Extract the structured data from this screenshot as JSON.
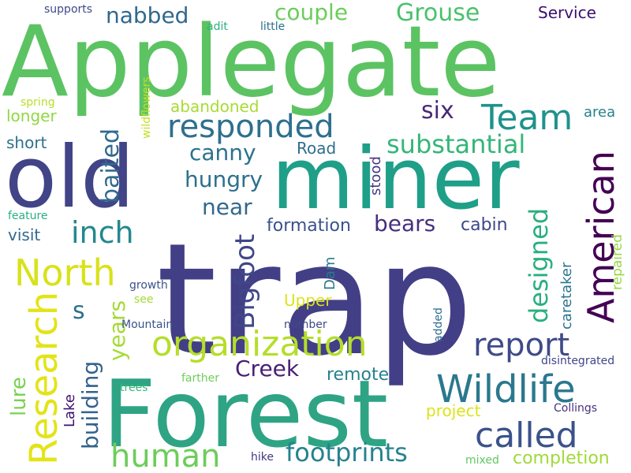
{
  "words": [
    {
      "text": "trap",
      "color": "#433f86"
    },
    {
      "text": "Applegate",
      "color": "#5cc363"
    },
    {
      "text": "Forest",
      "color": "#2ea484"
    },
    {
      "text": "miner",
      "color": "#1f9f88"
    },
    {
      "text": "old",
      "color": "#414487"
    },
    {
      "text": "Research",
      "color": "#e2e418"
    },
    {
      "text": "Wildlife",
      "color": "#2a788e"
    },
    {
      "text": "organization",
      "color": "#b5de2b"
    },
    {
      "text": "called",
      "color": "#3b528b"
    },
    {
      "text": "American",
      "color": "#440154"
    },
    {
      "text": "North",
      "color": "#d8e219"
    },
    {
      "text": "responded",
      "color": "#2e6f8e"
    },
    {
      "text": "Team",
      "color": "#20928c"
    },
    {
      "text": "report",
      "color": "#3e4a89"
    },
    {
      "text": "human",
      "color": "#6ccd5a"
    },
    {
      "text": "footprints",
      "color": "#26828e"
    },
    {
      "text": "Bigfoot",
      "color": "#3f4788"
    },
    {
      "text": "inch",
      "color": "#23888e"
    },
    {
      "text": "substantial",
      "color": "#34b679"
    },
    {
      "text": "designed",
      "color": "#29af7f"
    },
    {
      "text": "baited",
      "color": "#306a8e"
    },
    {
      "text": "Grouse",
      "color": "#4ac16d"
    },
    {
      "text": "couple",
      "color": "#6ccd5a"
    },
    {
      "text": "nabbed",
      "color": "#31688e"
    },
    {
      "text": "Creek",
      "color": "#482173"
    },
    {
      "text": "building",
      "color": "#33638d"
    },
    {
      "text": "years",
      "color": "#a5db36"
    },
    {
      "text": "canny",
      "color": "#2c728e"
    },
    {
      "text": "hungry",
      "color": "#2d708e"
    },
    {
      "text": "near",
      "color": "#31688e"
    },
    {
      "text": "six",
      "color": "#482878"
    },
    {
      "text": "bears",
      "color": "#46307e"
    },
    {
      "text": "cabin",
      "color": "#3f4788"
    },
    {
      "text": "formation",
      "color": "#3b528b"
    },
    {
      "text": "lure",
      "color": "#7ad151"
    },
    {
      "text": "remote",
      "color": "#26828e"
    },
    {
      "text": "completion",
      "color": "#a0da39"
    },
    {
      "text": "project",
      "color": "#dde318"
    },
    {
      "text": "Service",
      "color": "#3b0f70"
    },
    {
      "text": "abandoned",
      "color": "#a8db34"
    },
    {
      "text": "longer",
      "color": "#90d743"
    },
    {
      "text": "short",
      "color": "#2c728e"
    },
    {
      "text": "visit",
      "color": "#31688e"
    },
    {
      "text": "Road",
      "color": "#2e6e8e"
    },
    {
      "text": "stood",
      "color": "#453781"
    },
    {
      "text": "Upper",
      "color": "#dde318"
    },
    {
      "text": "Lake",
      "color": "#3b0f70"
    },
    {
      "text": "Dam",
      "color": "#2a788e"
    },
    {
      "text": "caretaker",
      "color": "#2b758e"
    },
    {
      "text": "repaired",
      "color": "#95d840"
    },
    {
      "text": "area",
      "color": "#26828e"
    },
    {
      "text": "s",
      "color": "#2e6e8e"
    },
    {
      "text": "disintegrated",
      "color": "#404688"
    },
    {
      "text": "Collings",
      "color": "#46327e"
    },
    {
      "text": "feature",
      "color": "#2ab07f"
    },
    {
      "text": "spring",
      "color": "#b8de29"
    },
    {
      "text": "wildflowers",
      "color": "#c2df23"
    },
    {
      "text": "adit",
      "color": "#29af7f"
    },
    {
      "text": "little",
      "color": "#2c728e"
    },
    {
      "text": "supports",
      "color": "#3e4989"
    },
    {
      "text": "growth",
      "color": "#3b528b"
    },
    {
      "text": "see",
      "color": "#a2da37"
    },
    {
      "text": "Mountain",
      "color": "#3b528b"
    },
    {
      "text": "number",
      "color": "#3e4a89"
    },
    {
      "text": "added",
      "color": "#2e6e8e"
    },
    {
      "text": "farther",
      "color": "#6ece58"
    },
    {
      "text": "trees",
      "color": "#35b779"
    },
    {
      "text": "hike",
      "color": "#453781"
    },
    {
      "text": "mixed",
      "color": "#5ec962"
    }
  ]
}
